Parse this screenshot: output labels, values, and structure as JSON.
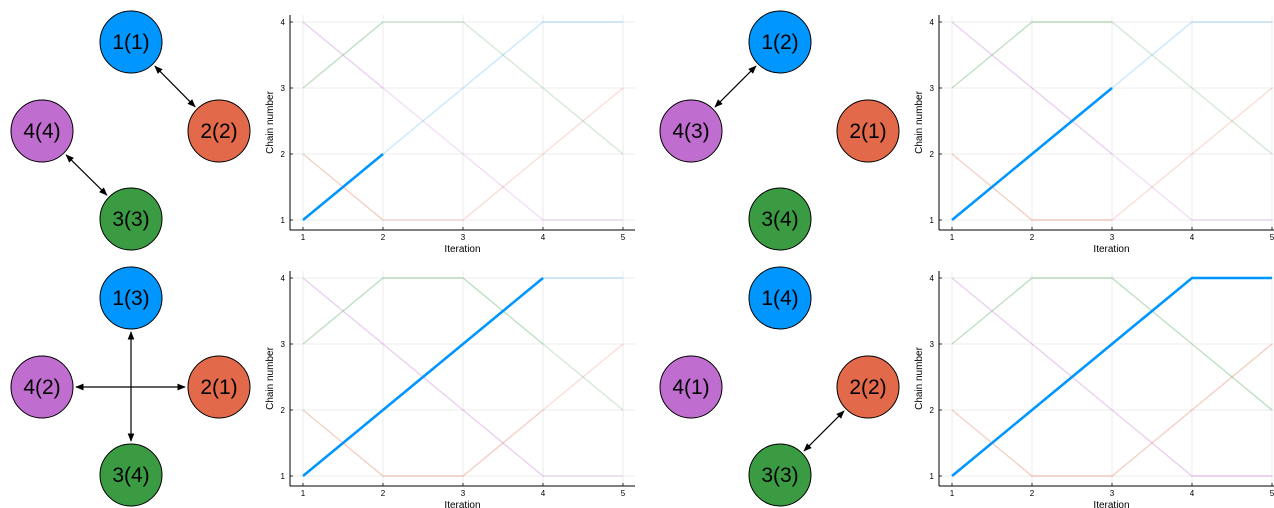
{
  "colors": {
    "chain1": "#0096ff",
    "chain2": "#e2694a",
    "chain3": "#3a9b43",
    "chain4": "#c06dd0",
    "axis": "#000000",
    "grid": "#e6e6e6"
  },
  "panels": [
    {
      "nodes": [
        {
          "chain": 1,
          "label": "1(1)"
        },
        {
          "chain": 2,
          "label": "2(2)"
        },
        {
          "chain": 3,
          "label": "3(3)"
        },
        {
          "chain": 4,
          "label": "4(4)"
        }
      ],
      "swaps": [
        [
          1,
          2
        ],
        [
          4,
          3
        ]
      ]
    },
    {
      "nodes": [
        {
          "chain": 1,
          "label": "1(2)"
        },
        {
          "chain": 2,
          "label": "2(1)"
        },
        {
          "chain": 3,
          "label": "3(4)"
        },
        {
          "chain": 4,
          "label": "4(3)"
        }
      ],
      "swaps": [
        [
          1,
          4
        ]
      ]
    },
    {
      "nodes": [
        {
          "chain": 1,
          "label": "1(3)"
        },
        {
          "chain": 2,
          "label": "2(1)"
        },
        {
          "chain": 3,
          "label": "3(4)"
        },
        {
          "chain": 4,
          "label": "4(2)"
        }
      ],
      "swaps": [
        [
          1,
          3
        ],
        [
          4,
          2
        ]
      ]
    },
    {
      "nodes": [
        {
          "chain": 1,
          "label": "1(4)"
        },
        {
          "chain": 2,
          "label": "2(2)"
        },
        {
          "chain": 3,
          "label": "3(3)"
        },
        {
          "chain": 4,
          "label": "4(1)"
        }
      ],
      "swaps": [
        [
          3,
          2
        ]
      ]
    }
  ],
  "chart_data": [
    {
      "type": "line",
      "xlabel": "Iteration",
      "ylabel": "Chain number",
      "xlim": [
        1,
        5
      ],
      "ylim": [
        1,
        4
      ],
      "xticks": [
        "1",
        "2",
        "3",
        "4",
        "5"
      ],
      "yticks": [
        "1",
        "2",
        "3",
        "4"
      ],
      "grid": true,
      "highlight_until": 2,
      "series": [
        {
          "values": [
            1,
            2,
            3,
            4,
            4
          ]
        },
        {
          "values": [
            2,
            1,
            1,
            2,
            3
          ]
        },
        {
          "values": [
            3,
            4,
            4,
            3,
            2
          ]
        },
        {
          "values": [
            4,
            3,
            2,
            1,
            1
          ]
        }
      ]
    },
    {
      "type": "line",
      "xlabel": "Iteration",
      "ylabel": "Chain number",
      "xlim": [
        1,
        5
      ],
      "ylim": [
        1,
        4
      ],
      "xticks": [
        "1",
        "2",
        "3",
        "4",
        "5"
      ],
      "yticks": [
        "1",
        "2",
        "3",
        "4"
      ],
      "grid": true,
      "highlight_until": 3,
      "series": [
        {
          "values": [
            1,
            2,
            3,
            4,
            4
          ]
        },
        {
          "values": [
            2,
            1,
            1,
            2,
            3
          ]
        },
        {
          "values": [
            3,
            4,
            4,
            3,
            2
          ]
        },
        {
          "values": [
            4,
            3,
            2,
            1,
            1
          ]
        }
      ]
    },
    {
      "type": "line",
      "xlabel": "Iteration",
      "ylabel": "Chain number",
      "xlim": [
        1,
        5
      ],
      "ylim": [
        1,
        4
      ],
      "xticks": [
        "1",
        "2",
        "3",
        "4",
        "5"
      ],
      "yticks": [
        "1",
        "2",
        "3",
        "4"
      ],
      "grid": true,
      "highlight_until": 4,
      "series": [
        {
          "values": [
            1,
            2,
            3,
            4,
            4
          ]
        },
        {
          "values": [
            2,
            1,
            1,
            2,
            3
          ]
        },
        {
          "values": [
            3,
            4,
            4,
            3,
            2
          ]
        },
        {
          "values": [
            4,
            3,
            2,
            1,
            1
          ]
        }
      ]
    },
    {
      "type": "line",
      "xlabel": "Iteration",
      "ylabel": "Chain number",
      "xlim": [
        1,
        5
      ],
      "ylim": [
        1,
        4
      ],
      "xticks": [
        "1",
        "2",
        "3",
        "4",
        "5"
      ],
      "yticks": [
        "1",
        "2",
        "3",
        "4"
      ],
      "grid": true,
      "highlight_until": 5,
      "series": [
        {
          "values": [
            1,
            2,
            3,
            4,
            4
          ]
        },
        {
          "values": [
            2,
            1,
            1,
            2,
            3
          ]
        },
        {
          "values": [
            3,
            4,
            4,
            3,
            2
          ]
        },
        {
          "values": [
            4,
            3,
            2,
            1,
            1
          ]
        }
      ]
    }
  ]
}
